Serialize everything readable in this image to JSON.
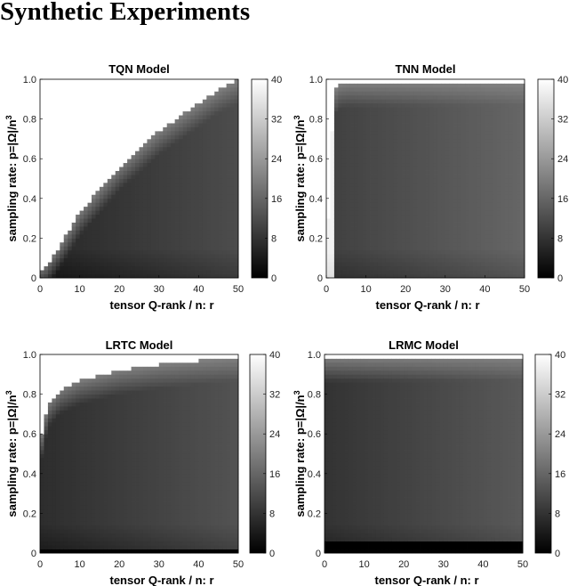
{
  "page": {
    "title": "Synthetic Experiments"
  },
  "chart_data": [
    {
      "type": "heatmap",
      "title": "TQN Model",
      "xlabel": "tensor Q-rank / n: r",
      "ylabel": "sampling rate: p=|Ω|/n",
      "ylabel_superscript": "3",
      "xlim": [
        0,
        50
      ],
      "ylim": [
        0,
        1
      ],
      "xticks": [
        "0",
        "10",
        "20",
        "30",
        "40",
        "50"
      ],
      "yticks": [
        "0",
        "0.2",
        "0.4",
        "0.6",
        "0.8",
        "1.0"
      ],
      "colorbar": {
        "range": [
          0,
          40
        ],
        "ticks": [
          "0",
          "8",
          "16",
          "24",
          "32",
          "40"
        ]
      },
      "boundary": "curve",
      "boundary_points": [
        [
          1,
          0.04
        ],
        [
          3,
          0.1
        ],
        [
          10,
          0.33
        ],
        [
          20,
          0.56
        ],
        [
          30,
          0.74
        ],
        [
          40,
          0.88
        ],
        [
          45,
          0.95
        ],
        [
          50,
          1.0
        ]
      ],
      "region_low_value": 6,
      "region_high_value": 40
    },
    {
      "type": "heatmap",
      "title": "TNN Model",
      "xlabel": "tensor Q-rank / n: r",
      "ylabel": "sampling rate: p=|Ω|/n",
      "ylabel_superscript": "3",
      "xlim": [
        0,
        50
      ],
      "ylim": [
        0,
        1
      ],
      "xticks": [
        "0",
        "10",
        "20",
        "30",
        "40",
        "50"
      ],
      "yticks": [
        "0",
        "0.2",
        "0.4",
        "0.6",
        "0.8",
        "1.0"
      ],
      "colorbar": {
        "range": [
          0,
          40
        ],
        "ticks": [
          "0",
          "8",
          "16",
          "24",
          "32",
          "40"
        ]
      },
      "boundary": "steep",
      "boundary_points": [
        [
          0,
          0.05
        ],
        [
          1,
          0.55
        ],
        [
          2,
          0.93
        ],
        [
          3,
          0.97
        ],
        [
          5,
          0.98
        ],
        [
          50,
          0.99
        ]
      ],
      "region_low_value": 10,
      "region_high_value": 40
    },
    {
      "type": "heatmap",
      "title": "LRTC Model",
      "xlabel": "tensor Q-rank / n: r",
      "ylabel": "sampling rate: p=|Ω|/n",
      "ylabel_superscript": "3",
      "xlim": [
        0,
        50
      ],
      "ylim": [
        0,
        1
      ],
      "xticks": [
        "0",
        "10",
        "20",
        "30",
        "40",
        "50"
      ],
      "yticks": [
        "0",
        "0.2",
        "0.4",
        "0.6",
        "0.8",
        "1.0"
      ],
      "colorbar": {
        "range": [
          0,
          40
        ],
        "ticks": [
          "0",
          "8",
          "16",
          "24",
          "32",
          "40"
        ]
      },
      "boundary": "concave",
      "boundary_points": [
        [
          0,
          0.55
        ],
        [
          2,
          0.75
        ],
        [
          5,
          0.82
        ],
        [
          10,
          0.87
        ],
        [
          20,
          0.92
        ],
        [
          30,
          0.95
        ],
        [
          40,
          0.97
        ],
        [
          50,
          0.99
        ]
      ],
      "bottom_band": [
        0,
        0.03
      ],
      "region_low_value": 7,
      "region_high_value": 40
    },
    {
      "type": "heatmap",
      "title": "LRMC Model",
      "xlabel": "tensor Q-rank / n: r",
      "ylabel": "sampling rate: p=|Ω|/n",
      "ylabel_superscript": "3",
      "xlim": [
        0,
        50
      ],
      "ylim": [
        0,
        1
      ],
      "xticks": [
        "0",
        "10",
        "20",
        "30",
        "40",
        "50"
      ],
      "yticks": [
        "0",
        "0.2",
        "0.4",
        "0.6",
        "0.8",
        "1.0"
      ],
      "colorbar": {
        "range": [
          0,
          40
        ],
        "ticks": [
          "0",
          "8",
          "16",
          "24",
          "32",
          "40"
        ]
      },
      "boundary": "top-only",
      "boundary_points": [
        [
          0,
          0.98
        ],
        [
          50,
          0.99
        ]
      ],
      "bottom_band": [
        0,
        0.06
      ],
      "region_low_value": 8,
      "region_high_value": 40
    }
  ]
}
